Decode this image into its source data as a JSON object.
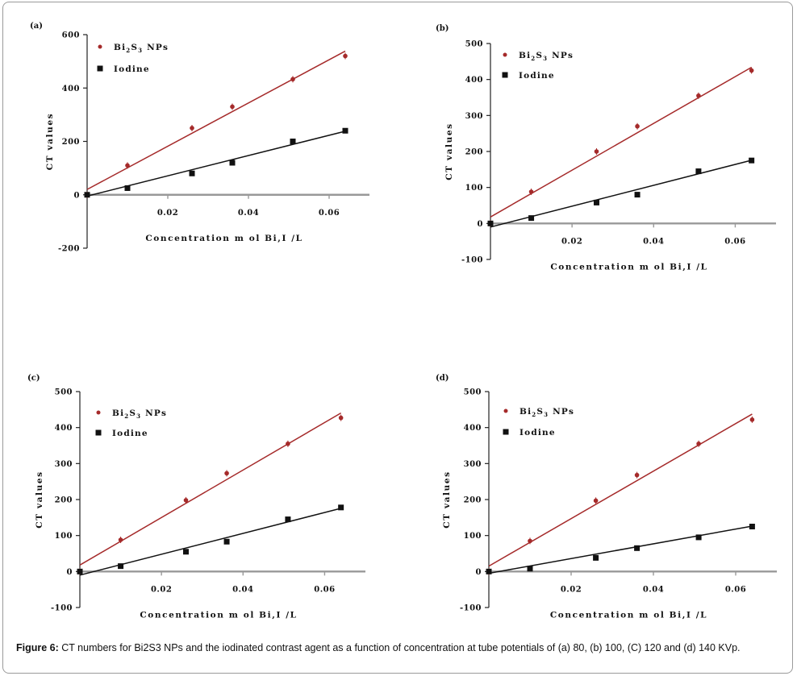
{
  "caption": {
    "label": "Figure 6:",
    "text": " CT numbers for Bi2S3 NPs and the iodinated contrast agent as a function of concentration at tube potentials of (a) 80, (b) 100, (C) 120 and (d) 140 KVp."
  },
  "colors": {
    "bi2s3": "#a52a2a",
    "iodine": "#111111",
    "axis_gray": "#999999"
  },
  "chart_data": [
    {
      "panel": "(a)",
      "type": "scatter",
      "xlabel": "Concentration m ol Bi,I /L",
      "ylabel": "CT values",
      "xlim": [
        0,
        0.07
      ],
      "ylim": [
        -200,
        600
      ],
      "xticks": [
        0.02,
        0.04,
        0.06
      ],
      "xtick_labels": [
        "0.02",
        "0.04",
        "0.06"
      ],
      "yticks": [
        -200,
        0,
        200,
        400,
        600
      ],
      "ytick_labels": [
        "-200",
        "0",
        "200",
        "400",
        "600"
      ],
      "series": [
        {
          "name": "Bi2S3 NPs",
          "legend_main": "Bi",
          "legend_sub1": "2",
          "legend_mid": "S",
          "legend_sub2": "3",
          "legend_tail": " NPs",
          "x": [
            0,
            0.01,
            0.026,
            0.036,
            0.051,
            0.064
          ],
          "y": [
            0,
            110,
            250,
            330,
            433,
            520
          ],
          "fit": [
            20,
            8100
          ]
        },
        {
          "name": "Iodine",
          "legend_main": "Iodine",
          "x": [
            0,
            0.01,
            0.026,
            0.036,
            0.051,
            0.064
          ],
          "y": [
            0,
            25,
            80,
            120,
            200,
            240
          ],
          "fit": [
            -5,
            3800
          ]
        }
      ]
    },
    {
      "panel": "(b)",
      "type": "scatter",
      "xlabel": "Concentration m ol Bi,I /L",
      "ylabel": "CT values",
      "xlim": [
        0,
        0.07
      ],
      "ylim": [
        -100,
        500
      ],
      "xticks": [
        0.02,
        0.04,
        0.06
      ],
      "xtick_labels": [
        "0.02",
        "0.04",
        "0.06"
      ],
      "yticks": [
        -100,
        0,
        100,
        200,
        300,
        400,
        500
      ],
      "ytick_labels": [
        "-100",
        "0",
        "100",
        "200",
        "300",
        "400",
        "500"
      ],
      "series": [
        {
          "name": "Bi2S3 NPs",
          "legend_main": "Bi",
          "legend_sub1": "2",
          "legend_mid": "S",
          "legend_sub2": "3",
          "legend_tail": " NPs",
          "x": [
            0,
            0.01,
            0.026,
            0.036,
            0.051,
            0.064
          ],
          "y": [
            0,
            88,
            200,
            270,
            355,
            425
          ],
          "fit": [
            18,
            6500
          ]
        },
        {
          "name": "Iodine",
          "legend_main": "Iodine",
          "x": [
            0,
            0.01,
            0.026,
            0.036,
            0.051,
            0.064
          ],
          "y": [
            0,
            15,
            58,
            80,
            145,
            175
          ],
          "fit": [
            -10,
            2900
          ]
        }
      ]
    },
    {
      "panel": "(c)",
      "type": "scatter",
      "xlabel": "Concentration m ol Bi,I /L",
      "ylabel": "CT values",
      "xlim": [
        0,
        0.07
      ],
      "ylim": [
        -100,
        500
      ],
      "xticks": [
        0.02,
        0.04,
        0.06
      ],
      "xtick_labels": [
        "0.02",
        "0.04",
        "0.06"
      ],
      "yticks": [
        -100,
        0,
        100,
        200,
        300,
        400,
        500
      ],
      "ytick_labels": [
        "-100",
        "0",
        "100",
        "200",
        "300",
        "400",
        "500"
      ],
      "series": [
        {
          "name": "Bi2S3 NPs",
          "legend_main": "Bi",
          "legend_sub1": "2",
          "legend_mid": "S",
          "legend_sub2": "3",
          "legend_tail": " NPs",
          "x": [
            0,
            0.01,
            0.026,
            0.036,
            0.051,
            0.064
          ],
          "y": [
            0,
            88,
            198,
            273,
            355,
            427
          ],
          "fit": [
            18,
            6600
          ]
        },
        {
          "name": "Iodine",
          "legend_main": "Iodine",
          "x": [
            0,
            0.01,
            0.026,
            0.036,
            0.051,
            0.064
          ],
          "y": [
            0,
            15,
            55,
            83,
            145,
            178
          ],
          "fit": [
            -10,
            2900
          ]
        }
      ]
    },
    {
      "panel": "(d)",
      "type": "scatter",
      "xlabel": "Concentration m ol Bi,I /L",
      "ylabel": "CT values",
      "xlim": [
        0,
        0.07
      ],
      "ylim": [
        -100,
        500
      ],
      "xticks": [
        0.02,
        0.04,
        0.06
      ],
      "xtick_labels": [
        "0.02",
        "0.04",
        "0.06"
      ],
      "yticks": [
        -100,
        0,
        100,
        200,
        300,
        400,
        500
      ],
      "ytick_labels": [
        "-100",
        "0",
        "100",
        "200",
        "300",
        "400",
        "500"
      ],
      "series": [
        {
          "name": "Bi2S3 NPs",
          "legend_main": "Bi",
          "legend_sub1": "2",
          "legend_mid": "S",
          "legend_sub2": "3",
          "legend_tail": " NPs",
          "x": [
            0,
            0.01,
            0.026,
            0.036,
            0.051,
            0.064
          ],
          "y": [
            0,
            85,
            197,
            268,
            355,
            422
          ],
          "fit": [
            15,
            6600
          ]
        },
        {
          "name": "Iodine",
          "legend_main": "Iodine",
          "x": [
            0,
            0.01,
            0.026,
            0.036,
            0.051,
            0.064
          ],
          "y": [
            0,
            8,
            38,
            65,
            95,
            125
          ],
          "fit": [
            -5,
            2050
          ]
        }
      ]
    }
  ]
}
